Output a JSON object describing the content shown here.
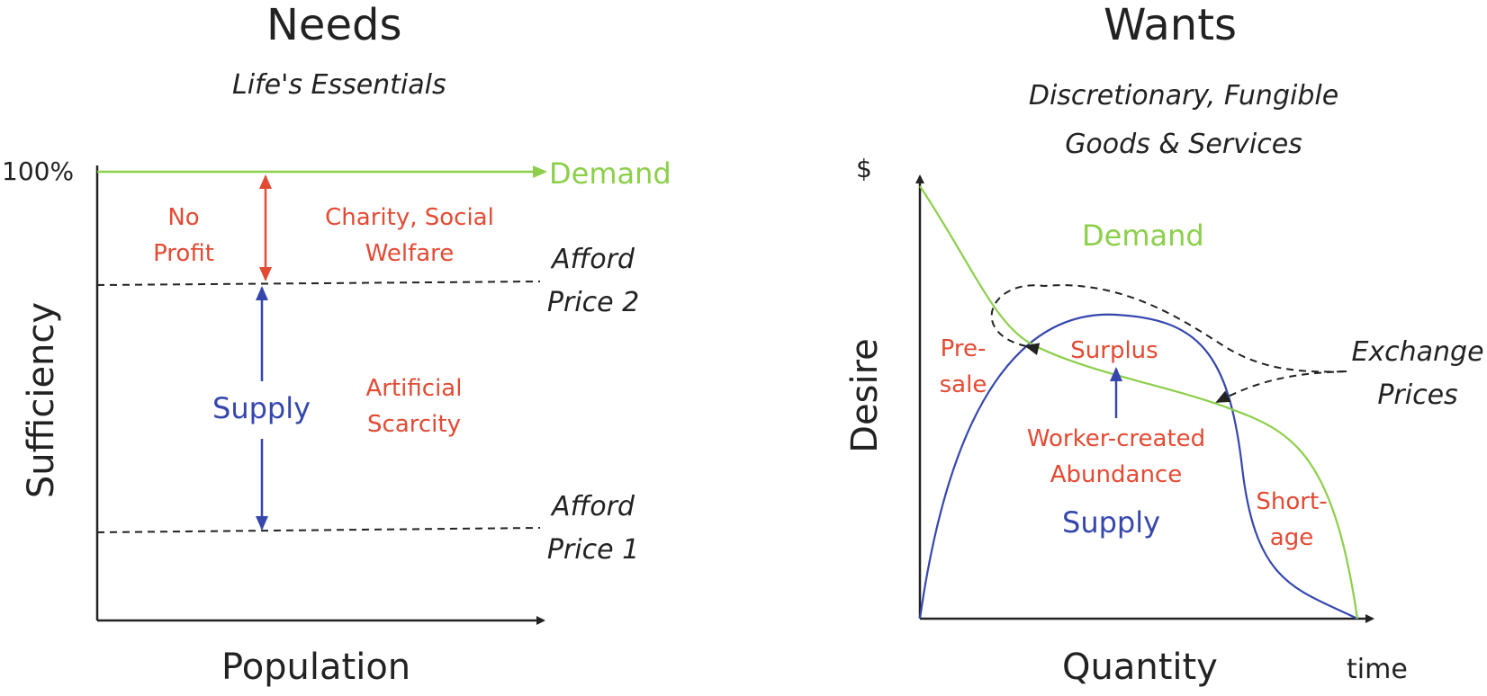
{
  "needs": {
    "title": "Needs",
    "subtitle": "Life's Essentials",
    "y_axis_label": "Sufficiency",
    "x_axis_label": "Population",
    "y_tick": "100%",
    "demand_label": "Demand",
    "supply_label": "Supply",
    "no_profit": [
      "No",
      "Profit"
    ],
    "charity": [
      "Charity, Social",
      "Welfare"
    ],
    "artificial_scarcity": [
      "Artificial",
      "Scarcity"
    ],
    "afford_price_2": [
      "Afford",
      "Price 2"
    ],
    "afford_price_1": [
      "Afford",
      "Price 1"
    ]
  },
  "wants": {
    "title": "Wants",
    "subtitle": [
      "Discretionary, Fungible",
      "Goods & Services"
    ],
    "y_axis_label": "Desire",
    "y_axis_unit": "$",
    "x_axis_label": "Quantity",
    "x_axis_unit": "time",
    "demand_label": "Demand",
    "supply_label": "Supply",
    "presale": [
      "Pre-",
      "sale"
    ],
    "surplus": "Surplus",
    "worker_abundance": [
      "Worker-created",
      "Abundance"
    ],
    "shortage": [
      "Short-",
      "age"
    ],
    "exchange_prices": [
      "Exchange",
      "Prices"
    ]
  },
  "colors": {
    "demand": "#8ccf4a",
    "supply": "#3547ad",
    "annotation": "#e34a33",
    "ink": "#222222"
  }
}
